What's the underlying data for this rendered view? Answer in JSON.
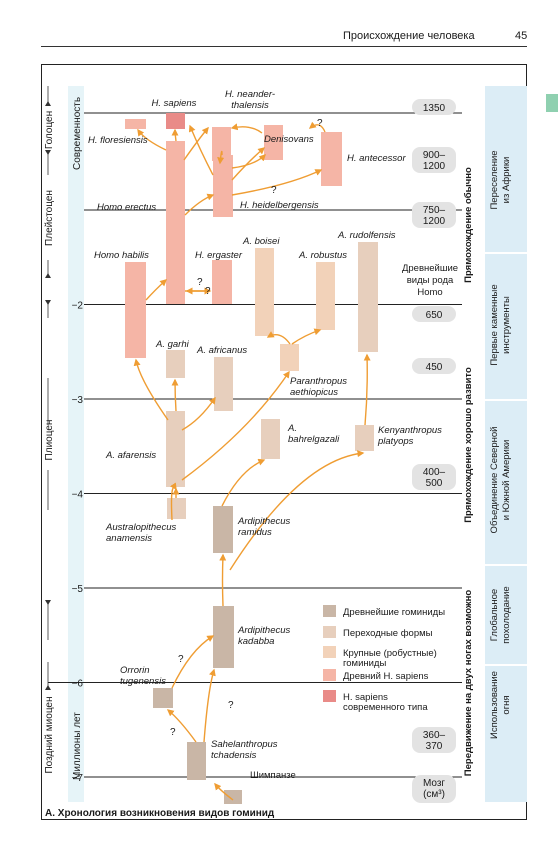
{
  "header": {
    "title": "Происхождение человека",
    "page": "45"
  },
  "axis": {
    "ylabel": "Миллионы лет",
    "ticks": [
      {
        "label": "−2",
        "ma": 2
      },
      {
        "label": "−3",
        "ma": 3
      },
      {
        "label": "−4",
        "ma": 4
      },
      {
        "label": "−5",
        "ma": 5
      },
      {
        "label": "−6",
        "ma": 6
      },
      {
        "label": "−7",
        "ma": 7
      }
    ],
    "epochs": [
      "Голоцен",
      "Плейстоцен",
      "Плиоцен",
      "Поздний миоцен"
    ],
    "modern_label": "Современность"
  },
  "brain_sizes": {
    "values": [
      "1350",
      "900–\n1200",
      "750–\n1200",
      "650",
      "450",
      "400–\n500",
      "360–\n370"
    ],
    "title_lines": [
      "Мозг",
      "(см³)"
    ]
  },
  "species": [
    {
      "name": "H. sapiens",
      "type": "modern"
    },
    {
      "name": "H. neander-\nthalensis",
      "type": "archaic_homo"
    },
    {
      "name": "H. floresiensis",
      "type": "archaic_homo"
    },
    {
      "name": "Denisovans",
      "type": "archaic_homo"
    },
    {
      "name": "H. antecessor",
      "type": "archaic_homo"
    },
    {
      "name": "Homo erectus",
      "type": "archaic_homo"
    },
    {
      "name": "H. heidelbergensis",
      "type": "archaic_homo"
    },
    {
      "name": "Homo habilis",
      "type": "archaic_homo"
    },
    {
      "name": "H. ergaster",
      "type": "archaic_homo"
    },
    {
      "name": "A. boisei",
      "type": "robust"
    },
    {
      "name": "A. robustus",
      "type": "robust"
    },
    {
      "name": "A. rudolfensis",
      "type": "transitional"
    },
    {
      "name": "A. garhi",
      "type": "transitional"
    },
    {
      "name": "A. africanus",
      "type": "transitional"
    },
    {
      "name": "Paranthropus\naethiopicus",
      "type": "robust"
    },
    {
      "name": "A. afarensis",
      "type": "transitional"
    },
    {
      "name": "A.\nbahrelgazali",
      "type": "transitional"
    },
    {
      "name": "Kenyanthropus\nplatyops",
      "type": "transitional"
    },
    {
      "name": "Australopithecus\nanamensis",
      "type": "transitional"
    },
    {
      "name": "Ardipithecus\nramidus",
      "type": "earliest"
    },
    {
      "name": "Ardipithecus\nkadabba",
      "type": "earliest"
    },
    {
      "name": "Orrorin\ntugenensis",
      "type": "earliest"
    },
    {
      "name": "Sahelanthropus\ntchadensis",
      "type": "earliest"
    },
    {
      "name": "Шимпанзе",
      "type": "earliest"
    }
  ],
  "annotations": {
    "question_mark": "?",
    "homo_caption": "Древнейшие\nвиды рода\nHomo"
  },
  "legend": [
    {
      "label": "Древнейшие гоминиды",
      "color": "#c9b6a6"
    },
    {
      "label": "Переходные формы",
      "color": "#e7cfbd"
    },
    {
      "label": "Крупные (робустные)\nгоминиды",
      "color": "#f2d2b9"
    },
    {
      "label": "Древний H. sapiens",
      "color": "#f5b5a6"
    },
    {
      "label": "H. sapiens\nсовременного типа",
      "color": "#e98b88"
    }
  ],
  "side_bands": {
    "bipedal": [
      "Прямохождение обычно",
      "Прямохождение хорошо развито",
      "Передвижение на двух ногах возможно"
    ],
    "events": [
      "Переселение\nиз Африки",
      "Первые каменные\nинструменты",
      "Объединение Северной\nи Южной Америки",
      "Глобальное\nпохолодание",
      "Использование\nогня"
    ]
  },
  "caption": "А. Хронология возникновения видов гоминид",
  "colors": {
    "arrow": "#ef9d33",
    "axis_band": "#e6f4f8",
    "event_band": "#dcedf6",
    "pill": "#e3e3e3"
  }
}
